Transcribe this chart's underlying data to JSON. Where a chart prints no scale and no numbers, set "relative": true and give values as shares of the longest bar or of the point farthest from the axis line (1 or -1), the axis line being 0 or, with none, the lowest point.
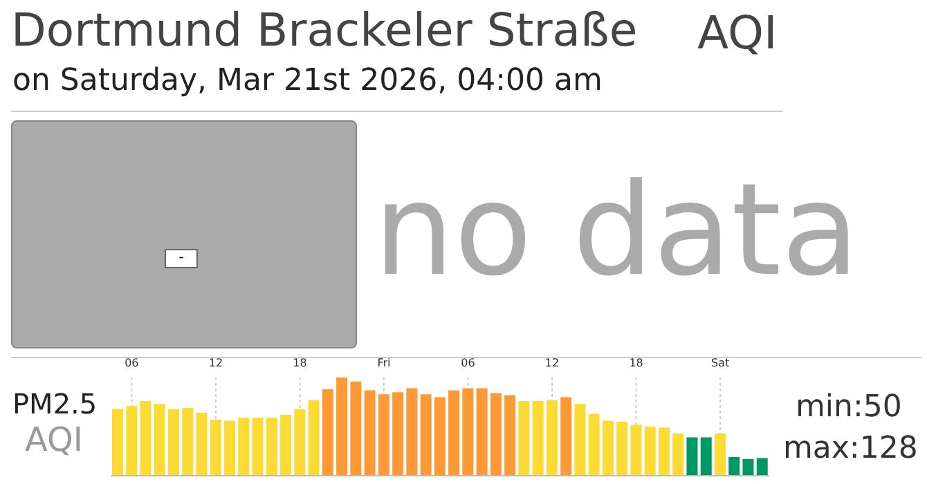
{
  "chart_data": {
    "type": "bar",
    "title": "Dortmund Brackeler Straße",
    "subtitle": "on Saturday, Mar 21st 2026, 04:00 am",
    "annotations": [
      "AQI",
      "-",
      "no data",
      "PM2.5",
      "AQI",
      "min:50",
      "max:128"
    ],
    "relative": true,
    "grid": "x",
    "categories": [
      null,
      "06",
      null,
      null,
      null,
      null,
      null,
      "12",
      null,
      null,
      null,
      null,
      null,
      "18",
      null,
      null,
      null,
      null,
      null,
      "Fri",
      null,
      null,
      null,
      null,
      null,
      "06",
      null,
      null,
      null,
      null,
      null,
      "12",
      null,
      null,
      null,
      null,
      null,
      "18",
      null,
      null,
      null,
      null,
      null,
      "Sat",
      null,
      null,
      null
    ],
    "values": [
      0.68,
      0.71,
      0.76,
      0.73,
      0.68,
      0.69,
      0.64,
      0.57,
      0.56,
      0.59,
      0.59,
      0.59,
      0.62,
      0.68,
      0.77,
      0.88,
      1,
      0.96,
      0.87,
      0.83,
      0.85,
      0.89,
      0.83,
      0.8,
      0.87,
      0.89,
      0.89,
      0.84,
      0.82,
      0.76,
      0.76,
      0.77,
      0.8,
      0.73,
      0.63,
      0.56,
      0.55,
      0.52,
      0.5,
      0.49,
      0.43,
      0.39,
      0.39,
      0.43,
      0.19,
      0.17,
      0.18
    ],
    "colors": [
      "#fcdc34",
      "#fcdc34",
      "#fcdc34",
      "#fcdc34",
      "#fcdc34",
      "#fcdc34",
      "#fcdc34",
      "#fcdc34",
      "#fcdc34",
      "#fcdc34",
      "#fcdc34",
      "#fcdc34",
      "#fcdc34",
      "#fcdc34",
      "#fcdc34",
      "#fd9a35",
      "#fd9a35",
      "#fd9a35",
      "#fd9a35",
      "#fd9a35",
      "#fd9a35",
      "#fd9a35",
      "#fd9a35",
      "#fd9a35",
      "#fd9a35",
      "#fd9a35",
      "#fd9a35",
      "#fd9a35",
      "#fd9a35",
      "#fcdc34",
      "#fcdc34",
      "#fcdc34",
      "#fd9a35",
      "#fcdc34",
      "#fcdc34",
      "#fcdc34",
      "#fcdc34",
      "#fcdc34",
      "#fcdc34",
      "#fcdc34",
      "#fcdc34",
      "#009966",
      "#009966",
      "#fcdc34",
      "#009966",
      "#009966",
      "#009966"
    ]
  }
}
